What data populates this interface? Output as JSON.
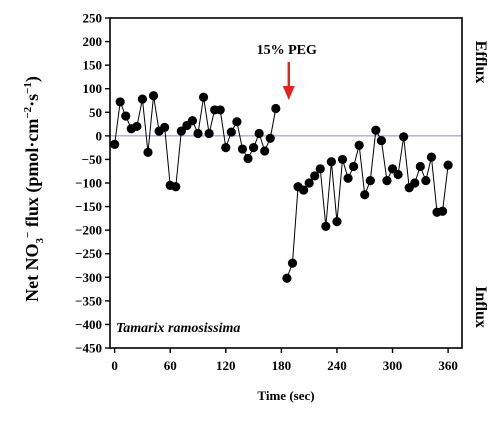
{
  "chart_data": {
    "type": "line",
    "xlabel": "Time (sec)",
    "ylabel_parts": [
      "Net NO",
      "3",
      "−",
      " flux  (pmol·cm",
      "−2",
      "·s",
      "−1",
      ")"
    ],
    "xlim": [
      -5,
      375
    ],
    "ylim": [
      -450,
      250
    ],
    "x_ticks": [
      0,
      60,
      120,
      180,
      240,
      300,
      360
    ],
    "y_ticks": [
      250,
      200,
      150,
      100,
      50,
      0,
      -50,
      -100,
      -150,
      -200,
      -250,
      -300,
      -350,
      -400,
      -450
    ],
    "zero_line": true,
    "annotation": {
      "text": "15% PEG",
      "x": 188,
      "arrow_color": "#e8201c"
    },
    "side_labels": {
      "top": "Efflux",
      "bottom": "Influx"
    },
    "species_label": "Tamarix ramosissima",
    "series": [
      {
        "x": [
          0,
          6,
          12,
          18,
          24,
          30,
          36,
          42,
          48,
          54,
          60,
          66,
          72,
          78,
          84,
          90,
          96,
          102,
          108,
          114,
          120,
          126,
          132,
          138,
          144,
          150,
          156,
          162,
          168,
          174,
          180
        ],
        "y": [
          -18,
          72,
          42,
          15,
          20,
          78,
          -35,
          85,
          10,
          18,
          -105,
          -108,
          10,
          22,
          32,
          5,
          82,
          5,
          55,
          55,
          -25,
          8,
          30,
          -28,
          -48,
          -25,
          5,
          -32,
          -5,
          58,
          null
        ]
      },
      {
        "x": [
          186,
          192,
          198,
          204,
          210,
          216,
          222,
          228,
          234,
          240,
          246,
          252,
          258,
          264,
          270,
          276,
          282,
          288,
          294,
          300,
          306,
          312,
          318,
          324,
          330,
          336,
          342,
          348,
          354,
          360,
          366
        ],
        "y": [
          -302,
          -270,
          -108,
          -115,
          -100,
          -85,
          -70,
          -192,
          -55,
          -182,
          -50,
          -90,
          -65,
          -20,
          -125,
          -95,
          12,
          -10,
          -95,
          -70,
          -82,
          -2,
          -110,
          -100,
          -65,
          -95,
          -45,
          -162,
          -160,
          -62,
          null
        ]
      }
    ]
  }
}
